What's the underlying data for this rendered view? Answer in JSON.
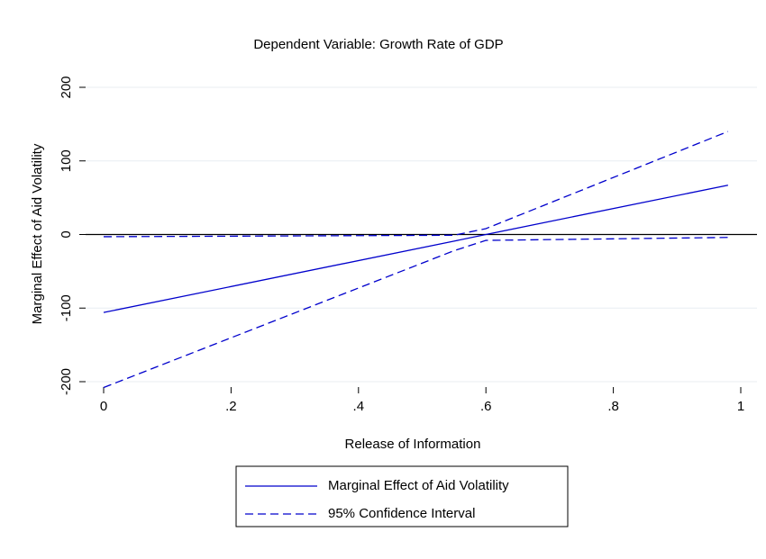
{
  "chart_data": {
    "type": "line",
    "title": "Dependent Variable: Growth Rate of GDP",
    "x_label": "Release of Information",
    "y_label": "Marginal Effect of Aid Volatility",
    "x": [
      0,
      0.55,
      0.6,
      0.98
    ],
    "series": [
      {
        "name": "Marginal Effect of Aid Volatility",
        "color": "#0000cc",
        "style": "solid",
        "values": [
          -106,
          -9,
          0,
          67
        ]
      },
      {
        "name": "95% Confidence Interval",
        "color": "#0000cc",
        "style": "dashed",
        "values": [
          -3,
          -1,
          8,
          140
        ]
      },
      {
        "name": "95% Confidence Interval",
        "color": "#0000cc",
        "style": "dashed",
        "values": [
          -208,
          -22,
          -8,
          -4
        ]
      }
    ],
    "xlim": [
      0,
      1
    ],
    "xticks": [
      0,
      {
        "value": 0.2,
        "label": ".2"
      },
      {
        "value": 0.4,
        "label": ".4"
      },
      {
        "value": 0.6,
        "label": ".6"
      },
      {
        "value": 0.8,
        "label": ".8"
      },
      1
    ],
    "ylim": [
      -200,
      200
    ],
    "yticks": [
      -200,
      -100,
      0,
      100,
      200
    ],
    "grid": true,
    "reference_line": 0,
    "legend_position": "bottom"
  }
}
